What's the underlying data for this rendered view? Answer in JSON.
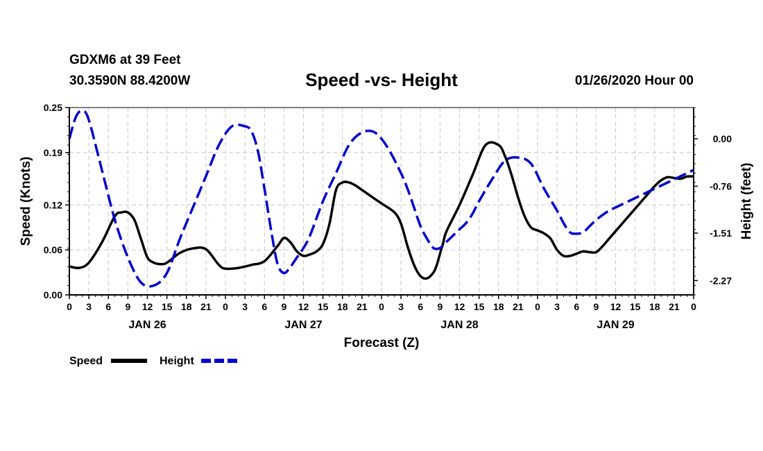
{
  "header": {
    "station": "GDXM6 at 39 Feet",
    "coords": "30.3590N 88.4200W",
    "title": "Speed -vs- Height",
    "datetime": "01/26/2020 Hour 00"
  },
  "chart_data": {
    "type": "line",
    "title": "Speed -vs- Height",
    "xlabel": "Forecast (Z)",
    "ylabel_left": "Speed (Knots)",
    "ylabel_right": "Height (feet)",
    "x_range_hours": [
      0,
      96
    ],
    "x_tick_hours": [
      0,
      3,
      6,
      9,
      12,
      15,
      18,
      21,
      24,
      27,
      30,
      33,
      36,
      39,
      42,
      45,
      48,
      51,
      54,
      57,
      60,
      63,
      66,
      69,
      72,
      75,
      78,
      81,
      84,
      87,
      90,
      93,
      96
    ],
    "x_tick_labels": [
      "0",
      "3",
      "6",
      "9",
      "12",
      "15",
      "18",
      "21",
      "0",
      "3",
      "6",
      "9",
      "12",
      "15",
      "18",
      "21",
      "0",
      "3",
      "6",
      "9",
      "12",
      "15",
      "18",
      "21",
      "0",
      "3",
      "6",
      "9",
      "12",
      "15",
      "18",
      "21",
      "0"
    ],
    "day_labels": [
      {
        "text": "JAN 26",
        "hour": 12
      },
      {
        "text": "JAN 27",
        "hour": 36
      },
      {
        "text": "JAN 28",
        "hour": 60
      },
      {
        "text": "JAN 29",
        "hour": 84
      }
    ],
    "y_left": {
      "range": [
        0,
        0.25
      ],
      "ticks": [
        0,
        0.06,
        0.12,
        0.19,
        0.25
      ],
      "tick_labels": [
        "0.00",
        "0.06",
        "0.12",
        "0.19",
        "0.25"
      ]
    },
    "y_right": {
      "range": [
        -2.5,
        0.5
      ],
      "ticks": [
        0,
        -0.76,
        -1.51,
        -2.27
      ],
      "tick_labels": [
        "0.00",
        "-0.76",
        "-1.51",
        "-2.27"
      ]
    },
    "grid": true,
    "legend_position": "bottom-left",
    "series": [
      {
        "name": "Speed",
        "axis": "left",
        "color": "#000000",
        "style": "solid",
        "x": [
          0,
          1.5,
          3,
          5,
          7,
          8,
          9,
          10,
          11,
          12,
          13,
          14,
          15,
          17,
          19,
          21,
          23,
          24,
          26,
          28,
          30,
          32,
          33,
          34,
          35,
          36,
          37,
          38,
          39,
          40,
          41,
          42,
          43,
          44,
          45,
          47,
          48,
          50,
          51,
          52,
          53,
          54,
          55,
          56,
          56.5,
          57,
          57.5,
          58,
          60,
          62,
          64,
          66,
          67,
          68,
          69,
          70,
          71,
          72,
          73,
          74,
          75,
          76,
          77,
          78,
          79,
          80,
          81,
          82,
          83,
          84,
          85,
          86,
          87,
          88,
          89,
          90,
          91,
          92,
          93,
          94,
          95,
          96
        ],
        "values": [
          0.038,
          0.036,
          0.043,
          0.07,
          0.105,
          0.11,
          0.11,
          0.1,
          0.075,
          0.05,
          0.043,
          0.041,
          0.043,
          0.056,
          0.062,
          0.061,
          0.04,
          0.035,
          0.036,
          0.04,
          0.045,
          0.065,
          0.076,
          0.07,
          0.058,
          0.052,
          0.054,
          0.058,
          0.068,
          0.095,
          0.14,
          0.15,
          0.15,
          0.146,
          0.14,
          0.128,
          0.122,
          0.11,
          0.095,
          0.065,
          0.04,
          0.025,
          0.022,
          0.03,
          0.04,
          0.055,
          0.07,
          0.085,
          0.12,
          0.16,
          0.2,
          0.2,
          0.185,
          0.16,
          0.13,
          0.105,
          0.09,
          0.086,
          0.082,
          0.075,
          0.06,
          0.052,
          0.052,
          0.055,
          0.058,
          0.057,
          0.057,
          0.065,
          0.075,
          0.085,
          0.095,
          0.105,
          0.115,
          0.125,
          0.135,
          0.145,
          0.153,
          0.157,
          0.156,
          0.155,
          0.158,
          0.158
        ]
      },
      {
        "name": "Height",
        "axis": "right",
        "color": "#0000cc",
        "style": "dashed",
        "x": [
          0,
          1,
          2,
          3,
          5,
          7,
          9,
          11,
          13,
          15,
          17,
          19,
          21,
          23,
          25,
          27,
          28,
          29,
          30,
          31,
          32,
          33,
          34,
          35,
          36,
          37,
          39,
          41,
          43,
          45,
          47,
          49,
          51,
          52,
          53,
          54,
          55,
          56,
          57,
          58,
          59,
          60,
          61,
          62,
          63,
          65,
          67,
          69,
          71,
          73,
          75,
          76,
          77,
          78,
          79,
          80,
          81,
          82,
          83,
          84,
          85,
          86,
          87,
          88,
          89,
          90,
          91,
          92,
          93,
          94,
          95,
          96
        ],
        "values": [
          0.0,
          0.35,
          0.45,
          0.3,
          -0.5,
          -1.3,
          -1.9,
          -2.3,
          -2.35,
          -2.15,
          -1.6,
          -1.1,
          -0.6,
          -0.1,
          0.2,
          0.2,
          0.12,
          -0.2,
          -0.8,
          -1.45,
          -2.0,
          -2.15,
          -2.05,
          -1.9,
          -1.75,
          -1.55,
          -1.0,
          -0.55,
          -0.1,
          0.1,
          0.1,
          -0.15,
          -0.55,
          -0.8,
          -1.1,
          -1.4,
          -1.6,
          -1.75,
          -1.75,
          -1.65,
          -1.55,
          -1.45,
          -1.35,
          -1.2,
          -1.0,
          -0.65,
          -0.35,
          -0.3,
          -0.4,
          -0.8,
          -1.15,
          -1.35,
          -1.5,
          -1.52,
          -1.5,
          -1.4,
          -1.3,
          -1.22,
          -1.15,
          -1.1,
          -1.05,
          -1.0,
          -0.95,
          -0.9,
          -0.85,
          -0.8,
          -0.75,
          -0.7,
          -0.65,
          -0.6,
          -0.55,
          -0.5
        ]
      }
    ],
    "legend": [
      {
        "label": "Speed",
        "color": "#000000",
        "style": "solid"
      },
      {
        "label": "Height",
        "color": "#0000cc",
        "style": "dashed"
      }
    ]
  }
}
